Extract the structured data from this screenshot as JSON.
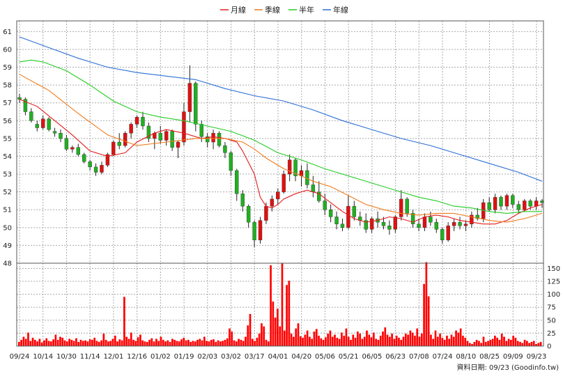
{
  "colors": {
    "month_line": "#e41b1b",
    "quarter_line": "#f07a1a",
    "half_year_line": "#22cc22",
    "year_line": "#2a6ed6",
    "candle_up": "#e01010",
    "candle_down": "#20b020",
    "volume_bar": "#ff0000",
    "grid": "#a8a8a8"
  },
  "chart_data": {
    "type": "line",
    "legend": [
      {
        "key": "month",
        "label": "月線"
      },
      {
        "key": "quarter",
        "label": "季線"
      },
      {
        "key": "half_year",
        "label": "半年"
      },
      {
        "key": "year",
        "label": "年線"
      }
    ],
    "legend_position": "top-center",
    "grid": true,
    "price_axis": {
      "ticks": [
        48,
        49,
        50,
        51,
        52,
        53,
        54,
        55,
        56,
        57,
        58,
        59,
        60,
        61
      ],
      "ylim": [
        48,
        61.6
      ]
    },
    "volume_axis": {
      "ticks": [
        0,
        25,
        50,
        75,
        100,
        125,
        150
      ],
      "ylim": [
        0,
        160
      ]
    },
    "x_labels": [
      "09/24",
      "10/14",
      "10/30",
      "11/14",
      "12/01",
      "12/16",
      "01/02",
      "01/19",
      "02/03",
      "03/02",
      "03/17",
      "04/01",
      "04/20",
      "05/06",
      "05/21",
      "06/05",
      "06/23",
      "07/08",
      "07/24",
      "08/10",
      "08/25",
      "09/09",
      "09/23"
    ],
    "series": [
      {
        "key": "month",
        "name": "月線",
        "points": [
          [
            0,
            57.2
          ],
          [
            3,
            56.8
          ],
          [
            6,
            56.0
          ],
          [
            9,
            55.2
          ],
          [
            12,
            54.3
          ],
          [
            15,
            54.0
          ],
          [
            18,
            54.2
          ],
          [
            20,
            54.8
          ],
          [
            23,
            55.3
          ],
          [
            25,
            55.5
          ],
          [
            28,
            55.3
          ],
          [
            31,
            55.0
          ],
          [
            33,
            55.1
          ],
          [
            35,
            55.0
          ],
          [
            37,
            54.8
          ],
          [
            38,
            54.3
          ],
          [
            40,
            53.0
          ],
          [
            41,
            51.7
          ],
          [
            42,
            51.2
          ],
          [
            43,
            51.1
          ],
          [
            44,
            51.3
          ],
          [
            45,
            51.6
          ],
          [
            47,
            51.9
          ],
          [
            49,
            52.1
          ],
          [
            51,
            51.9
          ],
          [
            53,
            51.4
          ],
          [
            55,
            50.9
          ],
          [
            57,
            50.5
          ],
          [
            59,
            50.3
          ],
          [
            61,
            50.4
          ],
          [
            63,
            50.6
          ],
          [
            65,
            50.5
          ],
          [
            67,
            50.3
          ],
          [
            69,
            50.6
          ],
          [
            71,
            50.7
          ],
          [
            73,
            50.6
          ],
          [
            75,
            50.4
          ],
          [
            77,
            50.3
          ],
          [
            79,
            50.2
          ],
          [
            81,
            50.2
          ],
          [
            83,
            50.4
          ],
          [
            85,
            50.8
          ],
          [
            87,
            51.1
          ],
          [
            89,
            51.3
          ]
        ]
      },
      {
        "key": "quarter",
        "name": "季線",
        "points": [
          [
            0,
            58.6
          ],
          [
            5,
            57.7
          ],
          [
            10,
            56.4
          ],
          [
            15,
            55.2
          ],
          [
            20,
            54.6
          ],
          [
            25,
            54.8
          ],
          [
            30,
            55.0
          ],
          [
            35,
            55.0
          ],
          [
            38,
            54.8
          ],
          [
            40,
            54.4
          ],
          [
            42,
            53.9
          ],
          [
            45,
            53.3
          ],
          [
            48,
            52.9
          ],
          [
            50,
            52.6
          ],
          [
            53,
            52.3
          ],
          [
            56,
            51.8
          ],
          [
            59,
            51.3
          ],
          [
            62,
            51.0
          ],
          [
            65,
            50.8
          ],
          [
            68,
            50.7
          ],
          [
            71,
            50.8
          ],
          [
            74,
            50.8
          ],
          [
            77,
            50.6
          ],
          [
            80,
            50.4
          ],
          [
            83,
            50.3
          ],
          [
            86,
            50.5
          ],
          [
            89,
            50.8
          ]
        ]
      },
      {
        "key": "half_year",
        "name": "半年",
        "points": [
          [
            0,
            59.3
          ],
          [
            2,
            59.4
          ],
          [
            4,
            59.3
          ],
          [
            8,
            58.8
          ],
          [
            12,
            58.0
          ],
          [
            16,
            57.1
          ],
          [
            20,
            56.5
          ],
          [
            24,
            56.2
          ],
          [
            28,
            56.0
          ],
          [
            32,
            55.7
          ],
          [
            36,
            55.4
          ],
          [
            40,
            54.9
          ],
          [
            44,
            54.2
          ],
          [
            48,
            53.8
          ],
          [
            52,
            53.3
          ],
          [
            56,
            52.9
          ],
          [
            60,
            52.5
          ],
          [
            64,
            52.1
          ],
          [
            68,
            51.7
          ],
          [
            71,
            51.5
          ],
          [
            74,
            51.2
          ],
          [
            77,
            51.1
          ],
          [
            80,
            50.9
          ],
          [
            83,
            50.8
          ],
          [
            86,
            50.9
          ],
          [
            89,
            50.9
          ]
        ]
      },
      {
        "key": "year",
        "name": "年線",
        "points": [
          [
            0,
            60.7
          ],
          [
            5,
            60.1
          ],
          [
            10,
            59.5
          ],
          [
            15,
            59.0
          ],
          [
            20,
            58.7
          ],
          [
            25,
            58.5
          ],
          [
            30,
            58.3
          ],
          [
            35,
            57.8
          ],
          [
            40,
            57.4
          ],
          [
            45,
            57.1
          ],
          [
            50,
            56.6
          ],
          [
            55,
            56.0
          ],
          [
            60,
            55.5
          ],
          [
            65,
            55.0
          ],
          [
            70,
            54.6
          ],
          [
            75,
            54.1
          ],
          [
            80,
            53.6
          ],
          [
            85,
            53.1
          ],
          [
            89,
            52.6
          ]
        ]
      }
    ],
    "candles": [
      [
        57.3,
        57.5,
        57.0,
        57.2
      ],
      [
        57.2,
        57.3,
        56.3,
        56.5
      ],
      [
        56.5,
        56.7,
        55.9,
        56.0
      ],
      [
        55.8,
        56.0,
        55.4,
        55.6
      ],
      [
        55.6,
        56.3,
        55.5,
        56.1
      ],
      [
        56.1,
        56.2,
        55.4,
        55.5
      ],
      [
        55.4,
        55.6,
        55.1,
        55.3
      ],
      [
        55.3,
        55.5,
        54.8,
        55.0
      ],
      [
        55.0,
        55.2,
        54.3,
        54.4
      ],
      [
        54.4,
        54.6,
        54.2,
        54.5
      ],
      [
        54.5,
        54.7,
        54.0,
        54.1
      ],
      [
        54.1,
        54.2,
        53.6,
        53.7
      ],
      [
        53.7,
        53.8,
        53.2,
        53.4
      ],
      [
        53.4,
        53.6,
        52.9,
        53.1
      ],
      [
        53.1,
        53.7,
        53.0,
        53.5
      ],
      [
        53.5,
        54.2,
        53.4,
        54.1
      ],
      [
        54.1,
        54.9,
        54.0,
        54.8
      ],
      [
        54.8,
        55.3,
        54.4,
        54.6
      ],
      [
        54.6,
        55.4,
        54.5,
        55.3
      ],
      [
        55.3,
        55.9,
        55.0,
        55.8
      ],
      [
        55.8,
        56.3,
        55.6,
        56.2
      ],
      [
        56.2,
        56.5,
        55.5,
        55.7
      ],
      [
        55.7,
        55.9,
        54.8,
        55.0
      ],
      [
        55.0,
        55.4,
        54.4,
        55.3
      ],
      [
        55.3,
        55.7,
        54.7,
        54.9
      ],
      [
        54.9,
        55.5,
        54.6,
        55.4
      ],
      [
        55.4,
        55.5,
        54.3,
        54.5
      ],
      [
        54.5,
        54.9,
        53.9,
        54.8
      ],
      [
        54.8,
        57.0,
        54.6,
        56.5
      ],
      [
        56.5,
        59.1,
        55.9,
        58.1
      ],
      [
        58.1,
        58.2,
        55.4,
        55.8
      ],
      [
        55.8,
        56.0,
        54.8,
        55.1
      ],
      [
        55.1,
        55.3,
        54.5,
        54.8
      ],
      [
        54.8,
        55.5,
        54.4,
        55.3
      ],
      [
        55.3,
        55.4,
        54.5,
        54.6
      ],
      [
        54.6,
        54.8,
        53.9,
        54.2
      ],
      [
        54.2,
        54.3,
        52.9,
        53.2
      ],
      [
        53.2,
        53.3,
        51.5,
        51.9
      ],
      [
        51.9,
        52.1,
        50.9,
        51.2
      ],
      [
        51.2,
        51.3,
        50.0,
        50.3
      ],
      [
        50.3,
        50.4,
        48.9,
        49.3
      ],
      [
        49.3,
        50.6,
        49.1,
        50.4
      ],
      [
        50.4,
        51.4,
        50.2,
        51.2
      ],
      [
        51.2,
        51.8,
        50.9,
        51.6
      ],
      [
        51.6,
        52.2,
        51.3,
        52.0
      ],
      [
        52.0,
        53.2,
        51.9,
        53.0
      ],
      [
        53.0,
        54.1,
        52.6,
        53.8
      ],
      [
        53.8,
        53.9,
        52.6,
        52.9
      ],
      [
        52.9,
        53.5,
        52.3,
        53.2
      ],
      [
        53.2,
        53.6,
        52.2,
        52.4
      ],
      [
        52.4,
        52.9,
        51.7,
        52.0
      ],
      [
        52.0,
        52.6,
        51.4,
        51.5
      ],
      [
        51.5,
        51.9,
        50.7,
        51.0
      ],
      [
        51.0,
        51.3,
        50.3,
        50.6
      ],
      [
        50.6,
        50.9,
        49.9,
        50.2
      ],
      [
        50.2,
        50.5,
        49.8,
        50.0
      ],
      [
        50.0,
        51.8,
        49.9,
        51.2
      ],
      [
        51.2,
        51.5,
        50.4,
        50.6
      ],
      [
        50.6,
        50.9,
        50.1,
        50.4
      ],
      [
        50.4,
        50.8,
        49.7,
        49.9
      ],
      [
        49.9,
        50.6,
        49.7,
        50.5
      ],
      [
        50.5,
        50.9,
        50.0,
        50.3
      ],
      [
        50.3,
        50.6,
        49.9,
        50.1
      ],
      [
        50.1,
        50.4,
        49.6,
        49.9
      ],
      [
        49.9,
        50.7,
        49.7,
        50.6
      ],
      [
        50.6,
        52.1,
        50.4,
        51.6
      ],
      [
        51.6,
        51.7,
        50.6,
        50.8
      ],
      [
        50.8,
        51.0,
        50.0,
        50.2
      ],
      [
        50.2,
        50.5,
        49.8,
        50.0
      ],
      [
        50.0,
        50.8,
        49.8,
        50.6
      ],
      [
        50.6,
        50.9,
        50.1,
        50.3
      ],
      [
        50.3,
        50.5,
        49.7,
        49.9
      ],
      [
        49.9,
        50.0,
        49.1,
        49.3
      ],
      [
        49.3,
        50.3,
        49.2,
        50.1
      ],
      [
        50.1,
        50.5,
        49.8,
        50.3
      ],
      [
        50.3,
        50.6,
        49.9,
        50.1
      ],
      [
        50.1,
        50.4,
        49.8,
        50.2
      ],
      [
        50.2,
        50.9,
        50.0,
        50.7
      ],
      [
        50.7,
        51.1,
        50.4,
        50.5
      ],
      [
        50.5,
        51.6,
        50.3,
        51.4
      ],
      [
        51.4,
        51.7,
        50.9,
        51.0
      ],
      [
        51.0,
        51.9,
        50.8,
        51.7
      ],
      [
        51.7,
        51.8,
        51.0,
        51.2
      ],
      [
        51.2,
        51.9,
        51.0,
        51.8
      ],
      [
        51.8,
        51.9,
        51.1,
        51.3
      ],
      [
        51.3,
        51.5,
        50.8,
        51.0
      ],
      [
        51.0,
        51.6,
        50.9,
        51.5
      ],
      [
        51.5,
        51.6,
        51.0,
        51.2
      ],
      [
        51.2,
        51.7,
        51.0,
        51.5
      ],
      [
        51.5,
        51.6,
        51.1,
        51.4
      ]
    ],
    "volumes": [
      8,
      12,
      18,
      14,
      26,
      10,
      16,
      12,
      9,
      14,
      7,
      11,
      15,
      10,
      9,
      13,
      22,
      12,
      18,
      16,
      11,
      9,
      14,
      12,
      10,
      15,
      8,
      12,
      10,
      11,
      9,
      13,
      12,
      16,
      10,
      8,
      11,
      24,
      12,
      9,
      10,
      14,
      20,
      9,
      13,
      11,
      95,
      18,
      14,
      26,
      12,
      10,
      17,
      22,
      11,
      9,
      8,
      12,
      15,
      9,
      14,
      10,
      18,
      12,
      9,
      11,
      8,
      14,
      12,
      10,
      9,
      13,
      16,
      11,
      12,
      8,
      10,
      9,
      12,
      14,
      11,
      18,
      10,
      9,
      12,
      13,
      8,
      11,
      9,
      10,
      12,
      15,
      34,
      28,
      11,
      9,
      14,
      12,
      10,
      18,
      40,
      62,
      14,
      10,
      16,
      24,
      44,
      38,
      12,
      9,
      156,
      86,
      55,
      72,
      38,
      160,
      30,
      118,
      126,
      24,
      18,
      34,
      44,
      19,
      16,
      22,
      30,
      18,
      14,
      28,
      33,
      20,
      15,
      12,
      17,
      24,
      30,
      18,
      22,
      16,
      14,
      26,
      20,
      34,
      18,
      12,
      22,
      16,
      28,
      24,
      14,
      18,
      30,
      22,
      17,
      26,
      14,
      12,
      20,
      28,
      36,
      22,
      18,
      24,
      14,
      20,
      16,
      12,
      18,
      24,
      22,
      30,
      26,
      20,
      34,
      18,
      24,
      120,
      162,
      96,
      22,
      14,
      30,
      18,
      24,
      16,
      12,
      20,
      14,
      22,
      18,
      30,
      26,
      34,
      20,
      16,
      10,
      6,
      4,
      8,
      12,
      10,
      6,
      18,
      8,
      10,
      12,
      14,
      20,
      16,
      12,
      24,
      18,
      10,
      14,
      12,
      20,
      16,
      10,
      8,
      6,
      12,
      10,
      6,
      8,
      10,
      4,
      6,
      8
    ],
    "footer_text": "資料日期: 09/23  (Goodinfo.tw)"
  }
}
